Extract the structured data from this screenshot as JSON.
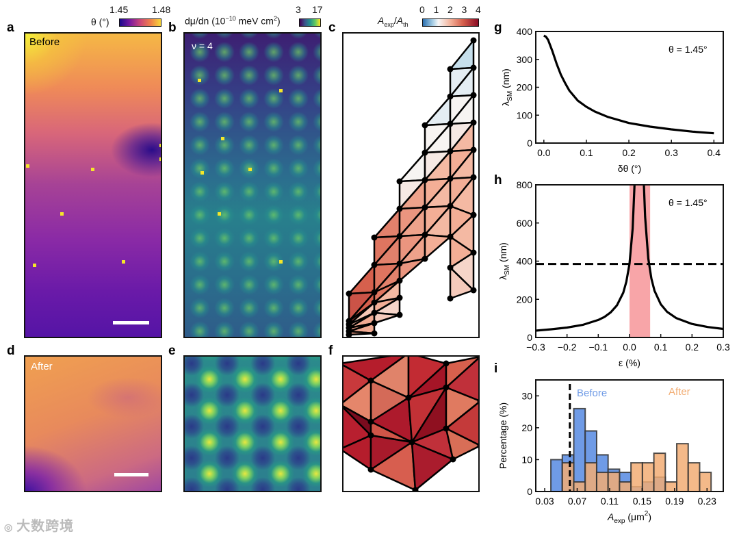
{
  "panels": {
    "a": {
      "letter": "a",
      "label": "Before",
      "colorbar_label": "θ (°)",
      "cb_min": "1.45",
      "cb_max": "1.48"
    },
    "b": {
      "letter": "b",
      "label": "ν = 4",
      "colorbar_label": "dμ/dn (10",
      "colorbar_exp": "−10",
      "colorbar_label2": " meV cm",
      "colorbar_exp2": "2",
      "colorbar_close": ")",
      "cb_min": "3",
      "cb_max": "17"
    },
    "c": {
      "letter": "c",
      "colorbar_A": "A",
      "colorbar_sub1": "exp",
      "colorbar_slash": "/",
      "colorbar_A2": "A",
      "colorbar_sub2": "th",
      "cb_ticks": [
        "0",
        "1",
        "2",
        "3",
        "4"
      ]
    },
    "d": {
      "letter": "d",
      "label": "After"
    },
    "e": {
      "letter": "e"
    },
    "f": {
      "letter": "f"
    },
    "g": {
      "letter": "g"
    },
    "h": {
      "letter": "h"
    },
    "i": {
      "letter": "i"
    }
  },
  "colors": {
    "before": "#6f9be6",
    "after": "#f2ad74",
    "shade": "#f8a5a8"
  },
  "watermark": "大数跨境",
  "chart_data": [
    {
      "panel": "g",
      "type": "line",
      "x": [
        0,
        0.005,
        0.01,
        0.02,
        0.03,
        0.04,
        0.05,
        0.06,
        0.08,
        0.1,
        0.12,
        0.15,
        0.2,
        0.25,
        0.3,
        0.35,
        0.4
      ],
      "y": [
        385,
        381,
        370,
        330,
        285,
        245,
        215,
        188,
        152,
        130,
        113,
        94,
        72,
        59,
        49,
        41,
        35
      ],
      "xlim": [
        -0.019,
        0.422
      ],
      "ylim": [
        0,
        400
      ],
      "xticks": [
        0,
        0.1,
        0.2,
        0.3,
        0.4
      ],
      "xticklabels": [
        "0.0",
        "0.1",
        "0.2",
        "0.3",
        "0.4"
      ],
      "yticks": [
        0,
        100,
        200,
        300,
        400
      ],
      "yticklabels": [
        "0",
        "100",
        "200",
        "300",
        "400"
      ],
      "xlabel": "δθ (°)",
      "ylabel": "λ",
      "ylabel_sub": "SM",
      "ylabel_unit": " (nm)",
      "annotation": "θ = 1.45°"
    },
    {
      "panel": "h",
      "type": "line",
      "series": [
        {
          "name": "left",
          "x": [
            -0.3,
            -0.25,
            -0.2,
            -0.15,
            -0.1,
            -0.08,
            -0.06,
            -0.04,
            -0.02,
            -0.01,
            0.0,
            0.01,
            0.016
          ],
          "y": [
            36,
            43,
            52,
            66,
            92,
            108,
            132,
            169,
            235,
            293,
            387,
            571,
            800
          ]
        },
        {
          "name": "right",
          "x": [
            0.046,
            0.05,
            0.06,
            0.07,
            0.08,
            0.1,
            0.12,
            0.15,
            0.2,
            0.25,
            0.3
          ],
          "y": [
            800,
            632,
            414,
            308,
            245,
            174,
            135,
            101,
            71,
            55,
            45
          ]
        }
      ],
      "shaded_range": [
        0,
        0.066
      ],
      "hline": 385,
      "xlim": [
        -0.3,
        0.3
      ],
      "ylim": [
        0,
        800
      ],
      "xticks": [
        -0.3,
        -0.2,
        -0.1,
        0,
        0.1,
        0.2,
        0.3
      ],
      "xticklabels": [
        "−0.3",
        "−0.2",
        "−0.1",
        "0.0",
        "0.1",
        "0.2",
        "0.3"
      ],
      "yticks": [
        0,
        200,
        400,
        600,
        800
      ],
      "yticklabels": [
        "0",
        "200",
        "400",
        "600",
        "800"
      ],
      "xlabel": "ε (%)",
      "ylabel": "λ",
      "ylabel_sub": "SM",
      "ylabel_unit": " (nm)",
      "annotation": "θ = 1.45°"
    },
    {
      "panel": "i",
      "type": "bar",
      "bin_start": 0.0376,
      "bin_width": 0.0141,
      "series": [
        {
          "name": "Before",
          "values": [
            10,
            11.5,
            26,
            19,
            11.5,
            7,
            6,
            1.5,
            3,
            4.5,
            0,
            0,
            0,
            0
          ]
        },
        {
          "name": "After",
          "values": [
            0,
            9,
            3,
            9,
            6,
            6,
            3,
            9,
            9,
            12,
            3,
            15,
            9,
            6
          ]
        }
      ],
      "vline": 0.061,
      "xlim": [
        0.019,
        0.25
      ],
      "ylim": [
        0,
        35
      ],
      "xticks": [
        0.03,
        0.07,
        0.11,
        0.15,
        0.19,
        0.23
      ],
      "xticklabels": [
        "0.03",
        "0.07",
        "0.11",
        "0.15",
        "0.19",
        "0.23"
      ],
      "yticks": [
        0,
        10,
        20,
        30
      ],
      "yticklabels": [
        "0",
        "10",
        "20",
        "30"
      ],
      "xlabel": "A",
      "xlabel_sub": "exp",
      "xlabel_unit": " (μm",
      "xlabel_sup": "2",
      "xlabel_close": ")",
      "ylabel": "Percentage (%)",
      "legend": [
        "Before",
        "After"
      ]
    }
  ]
}
